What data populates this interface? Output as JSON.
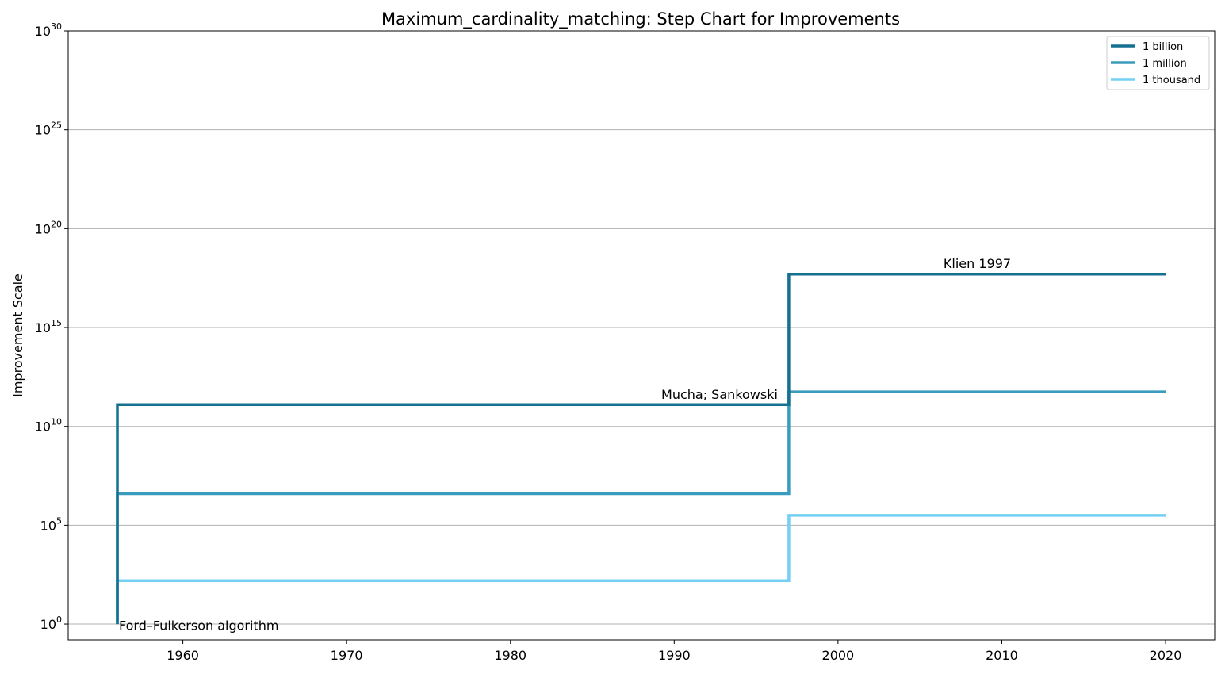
{
  "chart_data": {
    "type": "line",
    "step": true,
    "title": "Maximum_cardinality_matching: Step Chart for Improvements",
    "xlabel": "",
    "ylabel": "Improvement Scale",
    "xlim": [
      1953,
      2023
    ],
    "ylim": [
      -0.8,
      30
    ],
    "yscale": "log",
    "x_ticks": [
      1960,
      1970,
      1980,
      1990,
      2000,
      2010,
      2020
    ],
    "y_ticks": [
      {
        "base": "10",
        "exp": "0",
        "log": 0
      },
      {
        "base": "10",
        "exp": "5",
        "log": 5
      },
      {
        "base": "10",
        "exp": "10",
        "log": 10
      },
      {
        "base": "10",
        "exp": "15",
        "log": 15
      },
      {
        "base": "10",
        "exp": "20",
        "log": 20
      },
      {
        "base": "10",
        "exp": "25",
        "log": 25
      },
      {
        "base": "10",
        "exp": "30",
        "log": 30
      }
    ],
    "grid": "y",
    "legend_position": "top-right",
    "series": [
      {
        "name": "1 billion",
        "color": "#15718f",
        "x": [
          1956,
          1956,
          1997,
          1997,
          2020
        ],
        "log10_y": [
          0,
          11.1,
          11.1,
          17.7,
          17.7
        ]
      },
      {
        "name": "1 million",
        "color": "#3a9cbc",
        "x": [
          1956,
          1956,
          1997,
          1997,
          2020
        ],
        "log10_y": [
          0,
          6.6,
          6.6,
          11.75,
          11.75
        ]
      },
      {
        "name": "1 thousand",
        "color": "#74d0f3",
        "x": [
          1956,
          1956,
          1997,
          1997,
          2020
        ],
        "log10_y": [
          0,
          2.2,
          2.2,
          5.5,
          5.5
        ]
      }
    ],
    "annotations": [
      {
        "text": "Ford–Fulkerson algorithm",
        "x": 1956,
        "log10_y": -0.3,
        "anchor": "start"
      },
      {
        "text": "Mucha; Sankowski",
        "x": 1997,
        "log10_y": 11.4,
        "anchor": "end"
      },
      {
        "text": "Klien 1997",
        "x": 2008.5,
        "log10_y": 18.0,
        "anchor": "middle"
      }
    ]
  }
}
